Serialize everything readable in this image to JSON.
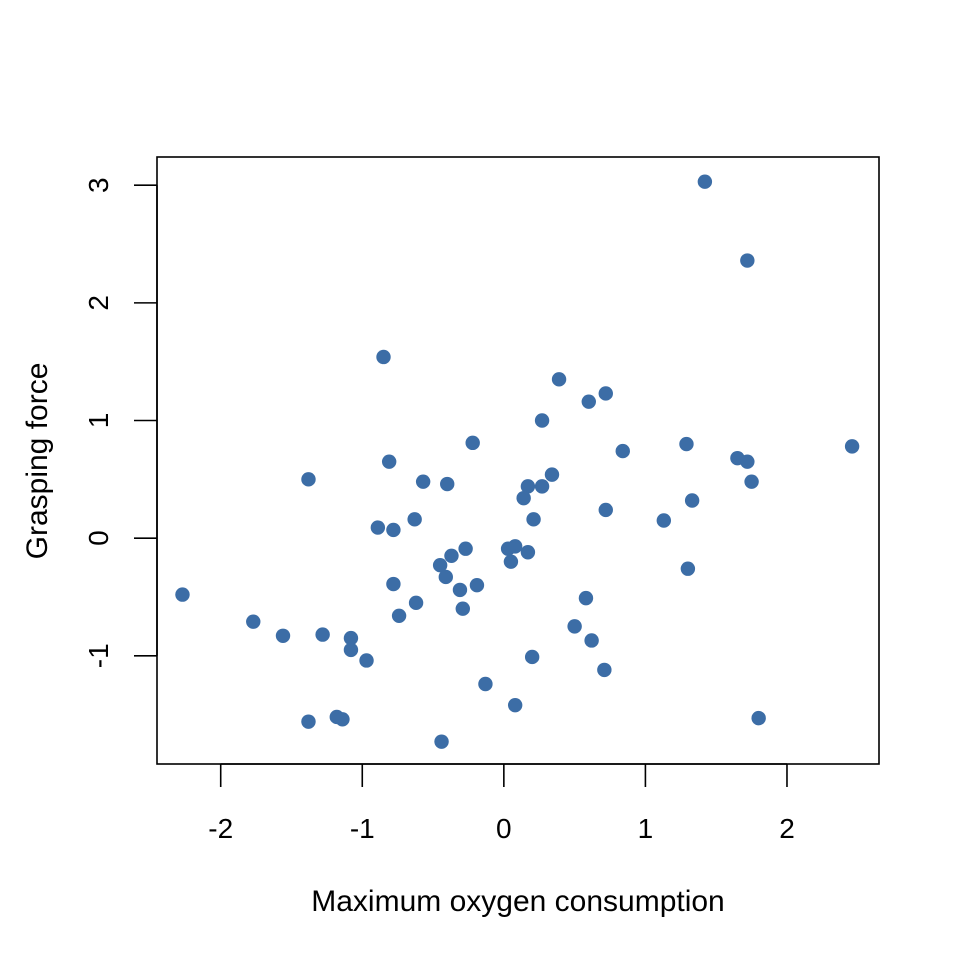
{
  "chart_data": {
    "type": "scatter",
    "title": "",
    "xlabel": "Maximum oxygen consumption",
    "ylabel": "Grasping force",
    "xlim": [
      -2.45,
      2.65
    ],
    "ylim": [
      -1.92,
      3.24
    ],
    "x_ticks": [
      -2,
      -1,
      0,
      1,
      2
    ],
    "y_ticks": [
      -1,
      0,
      1,
      2,
      3
    ],
    "x_tick_labels": [
      "-2",
      "-1",
      "0",
      "1",
      "2"
    ],
    "y_tick_labels": [
      "-1",
      "0",
      "1",
      "2",
      "3"
    ],
    "grid": false,
    "legend": "none",
    "point_color": "#3c6da6",
    "points": [
      {
        "x": 1.42,
        "y": 3.03
      },
      {
        "x": 1.72,
        "y": 2.36
      },
      {
        "x": -0.85,
        "y": 1.54
      },
      {
        "x": 0.39,
        "y": 1.35
      },
      {
        "x": 0.72,
        "y": 1.23
      },
      {
        "x": 0.6,
        "y": 1.16
      },
      {
        "x": 0.27,
        "y": 1.0
      },
      {
        "x": -0.22,
        "y": 0.81
      },
      {
        "x": 1.29,
        "y": 0.8
      },
      {
        "x": 2.46,
        "y": 0.78
      },
      {
        "x": 0.84,
        "y": 0.74
      },
      {
        "x": 1.65,
        "y": 0.68
      },
      {
        "x": 1.72,
        "y": 0.65
      },
      {
        "x": -0.81,
        "y": 0.65
      },
      {
        "x": 0.34,
        "y": 0.54
      },
      {
        "x": -1.38,
        "y": 0.5
      },
      {
        "x": -0.57,
        "y": 0.48
      },
      {
        "x": 1.75,
        "y": 0.48
      },
      {
        "x": -0.4,
        "y": 0.46
      },
      {
        "x": 0.17,
        "y": 0.44
      },
      {
        "x": 0.27,
        "y": 0.44
      },
      {
        "x": 0.14,
        "y": 0.34
      },
      {
        "x": 1.33,
        "y": 0.32
      },
      {
        "x": 0.72,
        "y": 0.24
      },
      {
        "x": 0.21,
        "y": 0.16
      },
      {
        "x": -0.63,
        "y": 0.16
      },
      {
        "x": 1.13,
        "y": 0.15
      },
      {
        "x": -0.89,
        "y": 0.09
      },
      {
        "x": -0.78,
        "y": 0.07
      },
      {
        "x": 0.08,
        "y": -0.07
      },
      {
        "x": 0.03,
        "y": -0.09
      },
      {
        "x": -0.27,
        "y": -0.09
      },
      {
        "x": 0.17,
        "y": -0.12
      },
      {
        "x": -0.37,
        "y": -0.15
      },
      {
        "x": 0.05,
        "y": -0.2
      },
      {
        "x": -0.45,
        "y": -0.23
      },
      {
        "x": 1.3,
        "y": -0.26
      },
      {
        "x": -0.41,
        "y": -0.33
      },
      {
        "x": -0.78,
        "y": -0.39
      },
      {
        "x": -0.19,
        "y": -0.4
      },
      {
        "x": -0.31,
        "y": -0.44
      },
      {
        "x": -2.27,
        "y": -0.48
      },
      {
        "x": 0.58,
        "y": -0.51
      },
      {
        "x": -0.62,
        "y": -0.55
      },
      {
        "x": -0.29,
        "y": -0.6
      },
      {
        "x": -0.74,
        "y": -0.66
      },
      {
        "x": -1.77,
        "y": -0.71
      },
      {
        "x": 0.5,
        "y": -0.75
      },
      {
        "x": -1.28,
        "y": -0.82
      },
      {
        "x": -1.56,
        "y": -0.83
      },
      {
        "x": -1.08,
        "y": -0.85
      },
      {
        "x": 0.62,
        "y": -0.87
      },
      {
        "x": -1.08,
        "y": -0.95
      },
      {
        "x": 0.2,
        "y": -1.01
      },
      {
        "x": -0.97,
        "y": -1.04
      },
      {
        "x": 0.71,
        "y": -1.12
      },
      {
        "x": -0.13,
        "y": -1.24
      },
      {
        "x": 0.08,
        "y": -1.42
      },
      {
        "x": -1.18,
        "y": -1.52
      },
      {
        "x": -1.14,
        "y": -1.54
      },
      {
        "x": 1.8,
        "y": -1.53
      },
      {
        "x": -1.38,
        "y": -1.56
      },
      {
        "x": -0.44,
        "y": -1.73
      }
    ]
  }
}
